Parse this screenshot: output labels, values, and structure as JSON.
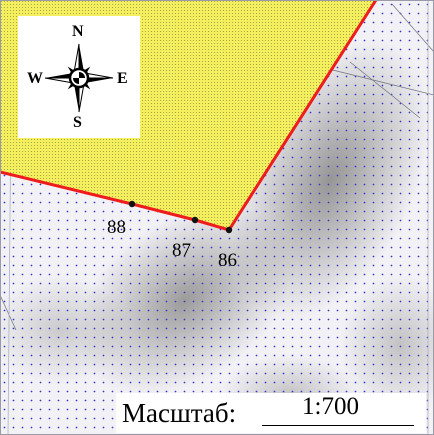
{
  "map": {
    "compass": {
      "north": "N",
      "south": "S",
      "west": "W",
      "east": "E",
      "icon": "compass-rose-icon"
    },
    "parcel": {
      "fill_color": "#f2ef5a",
      "border_color": "#ee1c1c"
    },
    "points": [
      {
        "label": "88"
      },
      {
        "label": "87"
      },
      {
        "label": "86"
      }
    ],
    "scale": {
      "title": "Масштаб:",
      "value": "1:700"
    }
  }
}
